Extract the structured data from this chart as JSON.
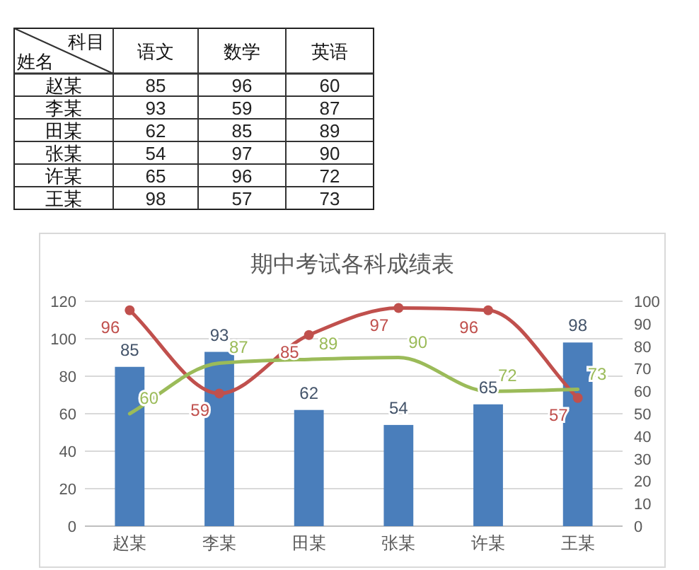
{
  "chart_data": [
    {
      "type": "other",
      "categories": [
        "赵某",
        "李某",
        "田某",
        "张某",
        "许某",
        "王某"
      ],
      "series": [
        {
          "name": "语文",
          "values": [
            85,
            93,
            62,
            54,
            65,
            98
          ]
        },
        {
          "name": "数学",
          "values": [
            96,
            59,
            85,
            97,
            96,
            57
          ]
        },
        {
          "name": "英语",
          "values": [
            60,
            87,
            89,
            90,
            72,
            73
          ]
        }
      ],
      "annotations": [
        "科目",
        "姓名"
      ],
      "data_labels": true
    },
    {
      "type": "bar",
      "title": "期中考试各科成绩表",
      "categories": [
        "赵某",
        "李某",
        "田某",
        "张某",
        "许某",
        "王某"
      ],
      "series": [
        {
          "type": "bar",
          "color": "#4a7ebb",
          "axis": "y",
          "values": [
            85,
            93,
            62,
            54,
            65,
            98
          ]
        },
        {
          "type": "line",
          "color": "#c0504d",
          "axis": "y2",
          "marker": "circle",
          "values": [
            96,
            59,
            85,
            97,
            96,
            57
          ]
        },
        {
          "type": "line",
          "color": "#9bbb59",
          "axis": "y",
          "values": [
            60,
            87,
            89,
            90,
            72,
            73
          ]
        }
      ],
      "data_labels": true,
      "ylim": [
        0,
        120
      ],
      "yticks": [
        0,
        20,
        40,
        60,
        80,
        100,
        120
      ],
      "y2lim": [
        0,
        100
      ],
      "y2ticks": [
        0,
        10,
        20,
        30,
        40,
        50,
        60,
        70,
        80,
        90,
        100
      ],
      "grid": "y"
    }
  ]
}
